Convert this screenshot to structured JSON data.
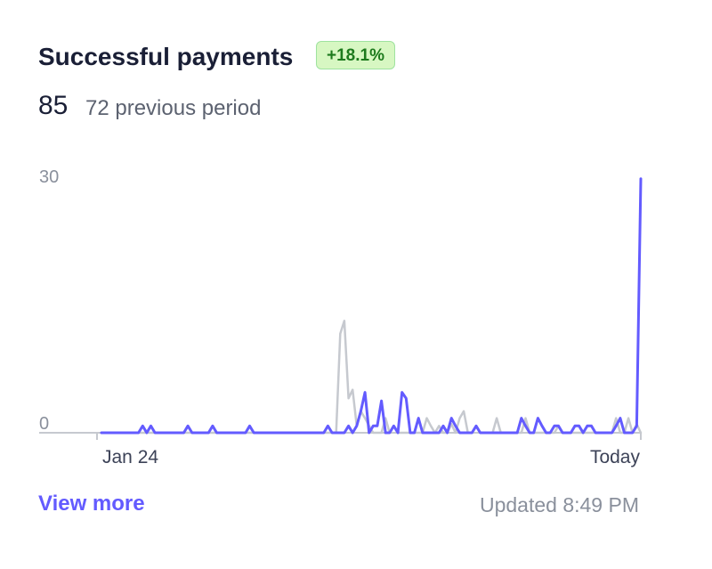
{
  "header": {
    "title": "Successful payments",
    "change_badge": "+18.1%",
    "current_value": "85",
    "previous_text": "72 previous period"
  },
  "footer": {
    "view_more": "View more",
    "updated": "Updated 8:49 PM"
  },
  "colors": {
    "current_series": "#635bff",
    "previous_series": "#c6c9cf",
    "badge_bg": "#d7f7c2",
    "badge_text": "#1d7a1d"
  },
  "chart_data": {
    "type": "line",
    "ylim": [
      0,
      30
    ],
    "y_tick_labels": [
      "30",
      "0"
    ],
    "x_tick_labels": [
      "Jan 24",
      "Today"
    ],
    "grid": false,
    "series": [
      {
        "role": "current",
        "values": [
          0,
          0,
          0,
          0,
          0,
          0,
          0,
          0,
          0,
          0,
          0.8,
          0,
          0.8,
          0,
          0,
          0,
          0,
          0,
          0,
          0,
          0,
          0.8,
          0,
          0,
          0,
          0,
          0,
          0.8,
          0,
          0,
          0,
          0,
          0,
          0,
          0,
          0,
          0.8,
          0,
          0,
          0,
          0,
          0,
          0,
          0,
          0,
          0,
          0,
          0,
          0,
          0,
          0,
          0,
          0,
          0,
          0,
          0.8,
          0,
          0,
          0,
          0,
          0.8,
          0,
          0.8,
          2.5,
          4.7,
          0,
          0.8,
          0.8,
          3.7,
          0,
          0,
          0.8,
          0,
          4.7,
          4.0,
          0,
          0,
          1.7,
          0,
          0,
          0,
          0,
          0,
          0.8,
          0,
          1.7,
          0.8,
          0,
          0,
          0,
          0,
          0.8,
          0,
          0,
          0,
          0,
          0,
          0,
          0,
          0,
          0,
          0,
          1.7,
          0.8,
          0,
          0,
          1.7,
          0.8,
          0,
          0,
          0.8,
          0.8,
          0,
          0,
          0,
          0.8,
          0.8,
          0,
          0.8,
          0.8,
          0,
          0,
          0,
          0,
          0,
          0.8,
          1.7,
          0,
          0,
          0,
          0.8,
          29.5
        ]
      },
      {
        "role": "previous",
        "values": [
          0,
          0,
          0,
          0,
          0,
          0,
          0,
          0,
          0,
          0,
          0,
          0,
          0,
          0,
          0,
          0,
          0,
          0,
          0,
          0,
          0,
          0,
          0,
          0,
          0,
          0,
          0,
          0,
          0,
          0,
          0,
          0,
          0,
          0,
          0,
          0,
          0,
          0,
          0,
          0,
          0,
          0,
          0,
          0,
          0,
          0,
          0,
          0,
          0,
          0,
          0,
          0,
          0,
          0,
          0,
          0,
          0,
          0,
          11.5,
          13.0,
          4.0,
          5.0,
          0.8,
          2.5,
          1.7,
          0.8,
          0,
          0,
          0,
          1.7,
          0,
          0.8,
          0,
          0,
          0,
          0,
          0,
          0,
          0,
          1.7,
          0.8,
          0,
          0.8,
          0,
          0,
          1.0,
          0,
          1.7,
          2.5,
          0,
          0,
          0.8,
          0,
          0,
          0,
          0,
          1.7,
          0,
          0,
          0,
          0,
          0,
          0,
          1.7,
          0,
          0,
          0,
          0,
          0,
          0,
          0,
          0.8,
          0,
          0,
          0,
          0,
          0,
          0,
          0,
          0,
          0,
          0,
          0,
          0,
          0,
          1.7,
          0,
          0,
          1.7,
          0,
          1.0,
          0
        ]
      }
    ]
  }
}
